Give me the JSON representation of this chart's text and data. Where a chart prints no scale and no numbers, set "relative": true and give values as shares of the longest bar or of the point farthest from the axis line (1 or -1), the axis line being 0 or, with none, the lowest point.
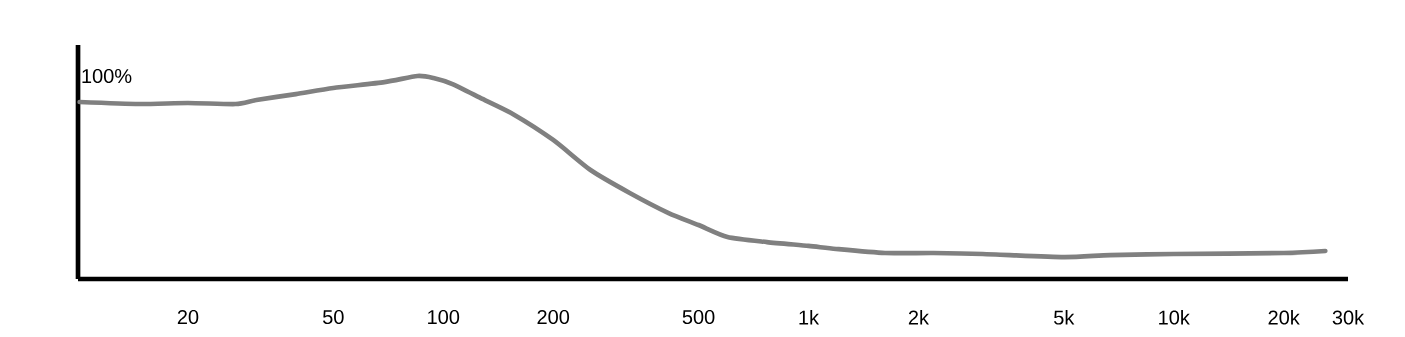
{
  "chart_data": {
    "type": "line",
    "relative": true,
    "log": "x",
    "xlim": [
      10,
      30000
    ],
    "xticks": [
      20,
      50,
      100,
      200,
      500,
      {
        "value": 1000,
        "label": "1k"
      },
      {
        "value": 2000,
        "label": "2k"
      },
      {
        "value": 5000,
        "label": "5k"
      },
      {
        "value": 10000,
        "label": "10k"
      },
      {
        "value": 20000,
        "label": "20k"
      },
      {
        "value": 30000,
        "label": "30k"
      }
    ],
    "x": [
      10.1,
      14.7,
      20,
      27,
      30.8,
      39.5,
      50,
      69,
      85,
      94,
      106,
      128,
      155,
      200,
      253,
      324,
      414,
      500,
      600,
      770,
      1000,
      1190,
      1620,
      2200,
      3000,
      5000,
      6700,
      10000,
      20000,
      26000
    ],
    "series": [
      {
        "color": "#808080",
        "values": [
          0.872,
          0.862,
          0.867,
          0.862,
          0.882,
          0.911,
          0.941,
          0.97,
          1.0,
          0.99,
          0.96,
          0.887,
          0.813,
          0.685,
          0.537,
          0.424,
          0.325,
          0.266,
          0.207,
          0.182,
          0.163,
          0.148,
          0.128,
          0.128,
          0.123,
          0.108,
          0.118,
          0.123,
          0.128,
          0.138
        ]
      }
    ],
    "annotations": [
      "100%"
    ]
  }
}
